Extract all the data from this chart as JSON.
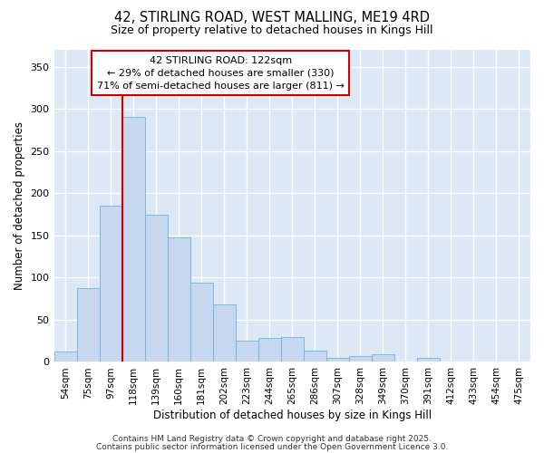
{
  "title1": "42, STIRLING ROAD, WEST MALLING, ME19 4RD",
  "title2": "Size of property relative to detached houses in Kings Hill",
  "xlabel": "Distribution of detached houses by size in Kings Hill",
  "ylabel": "Number of detached properties",
  "categories": [
    "54sqm",
    "75sqm",
    "97sqm",
    "118sqm",
    "139sqm",
    "160sqm",
    "181sqm",
    "202sqm",
    "223sqm",
    "244sqm",
    "265sqm",
    "286sqm",
    "307sqm",
    "328sqm",
    "349sqm",
    "370sqm",
    "391sqm",
    "412sqm",
    "433sqm",
    "454sqm",
    "475sqm"
  ],
  "values": [
    12,
    88,
    185,
    290,
    175,
    148,
    94,
    68,
    25,
    28,
    30,
    13,
    5,
    7,
    9,
    0,
    5,
    0,
    0,
    0,
    0
  ],
  "bar_color": "#c5d8f0",
  "bar_edgecolor": "#7ab0d8",
  "plot_bg_color": "#dce8f5",
  "fig_bg_color": "#ffffff",
  "grid_color": "#ffffff",
  "annotation_text": "42 STIRLING ROAD: 122sqm\n← 29% of detached houses are smaller (330)\n71% of semi-detached houses are larger (811) →",
  "annotation_box_edgecolor": "#cc0000",
  "annotation_box_facecolor": "#ffffff",
  "vline_color": "#cc0000",
  "vline_x_index": 3,
  "ylim": [
    0,
    370
  ],
  "yticks": [
    0,
    50,
    100,
    150,
    200,
    250,
    300,
    350
  ],
  "footer1": "Contains HM Land Registry data © Crown copyright and database right 2025.",
  "footer2": "Contains public sector information licensed under the Open Government Licence 3.0."
}
